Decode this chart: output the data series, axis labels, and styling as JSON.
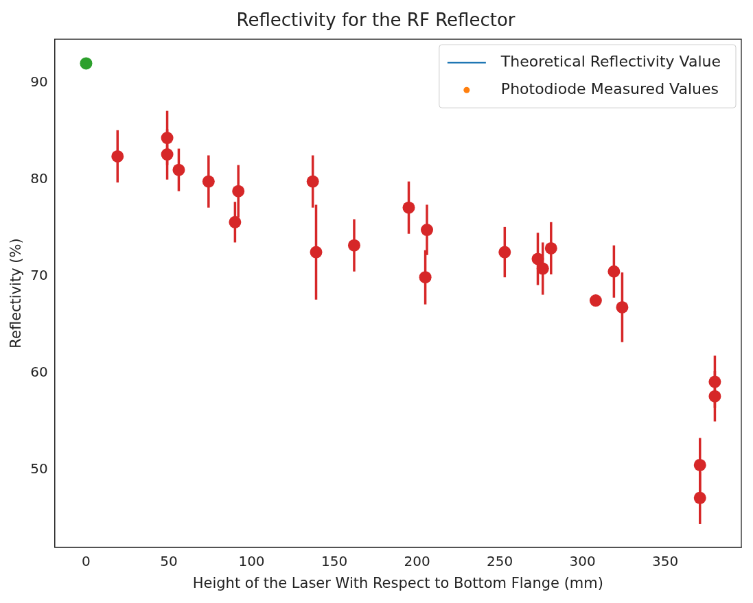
{
  "chart_data": {
    "type": "scatter",
    "title": "Reflectivity for the RF Reflector",
    "xlabel": "Height of the Laser With Respect to Bottom Flange (mm)",
    "ylabel": "Reflectivity (%)",
    "xlim": [
      -19,
      396
    ],
    "xticks": [
      0,
      50,
      100,
      150,
      200,
      250,
      300,
      350
    ],
    "ylim": [
      42,
      94.5
    ],
    "yticks": [
      50,
      60,
      70,
      80,
      90
    ],
    "grid": false,
    "legend": "top right",
    "marker": "circle",
    "series": [
      {
        "name": "Theoretical Reflectivity Value",
        "type": "line",
        "color": "#1f77b4"
      },
      {
        "name": "Photodiode Measured Values",
        "type": "scatter",
        "color": "#ff7f0e"
      },
      {
        "color": "#2ca02c",
        "x": [
          0
        ],
        "values": [
          92.0
        ]
      },
      {
        "color": "#d62728",
        "x": [
          19,
          49,
          49,
          56,
          74,
          92,
          90,
          137,
          139,
          162,
          195,
          206,
          205,
          253,
          273,
          276,
          281,
          308,
          319,
          324,
          380,
          380,
          371,
          371
        ],
        "values": [
          82.4,
          84.3,
          82.6,
          81.0,
          79.8,
          78.8,
          75.6,
          79.8,
          72.5,
          73.2,
          77.1,
          74.8,
          69.9,
          72.5,
          71.8,
          70.8,
          72.9,
          67.5,
          70.5,
          66.8,
          59.1,
          57.6,
          50.5,
          47.1
        ],
        "errors": [
          2.7,
          2.8,
          2.6,
          2.2,
          2.7,
          2.7,
          2.1,
          2.7,
          4.9,
          2.7,
          2.7,
          2.6,
          2.8,
          2.6,
          2.7,
          2.7,
          2.7,
          null,
          2.7,
          3.6,
          2.7,
          2.6,
          2.8,
          2.7
        ]
      }
    ]
  }
}
